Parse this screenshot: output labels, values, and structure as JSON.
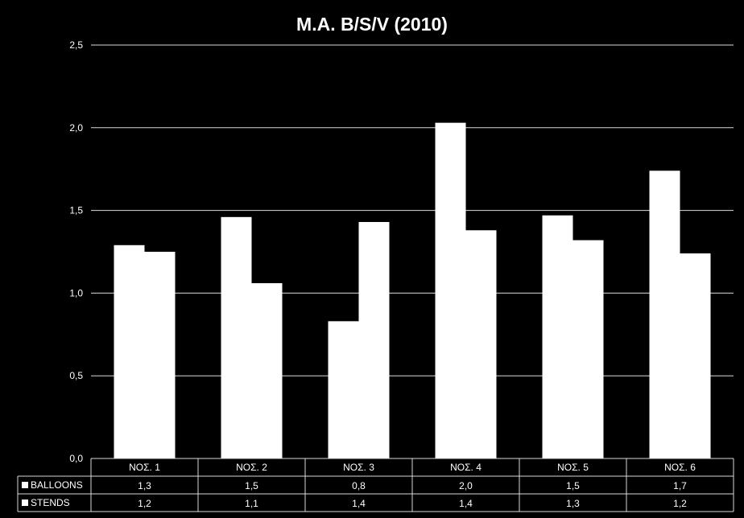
{
  "chart_data": {
    "type": "bar",
    "title": "M.A. B/S/V (2010)",
    "xlabel": "",
    "ylabel": "",
    "categories": [
      "ΝΟΣ. 1",
      "ΝΟΣ. 2",
      "ΝΟΣ. 3",
      "ΝΟΣ. 4",
      "ΝΟΣ. 5",
      "ΝΟΣ. 6"
    ],
    "series": [
      {
        "name": "BALLOONS",
        "values": [
          1.29,
          1.46,
          0.83,
          2.03,
          1.47,
          1.74
        ],
        "labels": [
          "1,3",
          "1,5",
          "0,8",
          "2,0",
          "1,5",
          "1,7"
        ]
      },
      {
        "name": "STENDS",
        "values": [
          1.25,
          1.06,
          1.43,
          1.38,
          1.32,
          1.24
        ],
        "labels": [
          "1,2",
          "1,1",
          "1,4",
          "1,4",
          "1,3",
          "1,2"
        ]
      }
    ],
    "ylim": [
      0,
      2.5
    ],
    "yticks": [
      0,
      0.5,
      1.0,
      1.5,
      2.0,
      2.5
    ],
    "ytick_labels": [
      "0,0",
      "0,5",
      "1,0",
      "1,5",
      "2,0",
      "2,5"
    ],
    "grid": true,
    "legend": "data-table",
    "bar_color": "#ffffff",
    "background_color": "#000000"
  }
}
